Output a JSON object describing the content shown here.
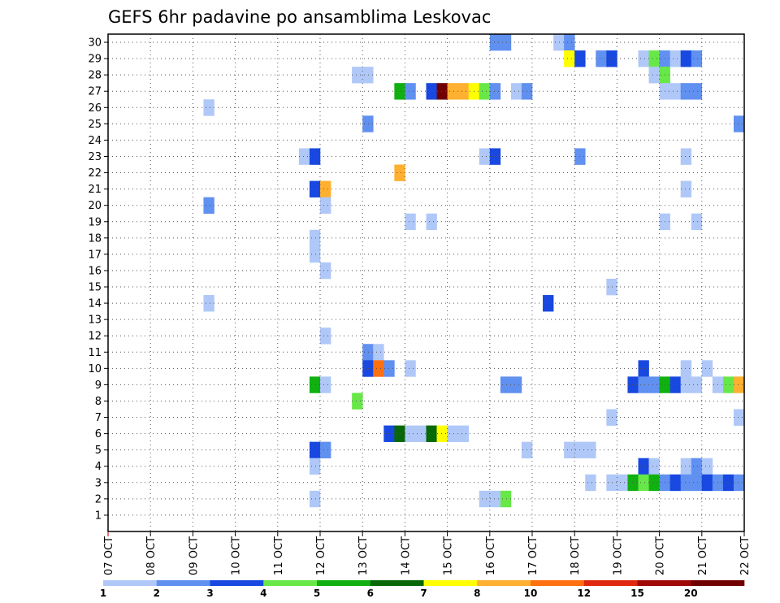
{
  "chart_data": {
    "type": "heatmap",
    "title": "GEFS 6hr padavine po ansamblima Leskovac",
    "x_tick_labels": [
      "07 OCT",
      "08 OCT",
      "09 OCT",
      "10 OCT",
      "11 OCT",
      "12 OCT",
      "13 OCT",
      "14 OCT",
      "15 OCT",
      "16 OCT",
      "17 OCT",
      "18 OCT",
      "19 OCT",
      "20 OCT",
      "21 OCT",
      "22 OCT"
    ],
    "y_range": [
      1,
      30
    ],
    "grid": true,
    "colors": [
      "#b0c8f8",
      "#6090f0",
      "#1848e0",
      "#68e848",
      "#10b010",
      "#086808",
      "#ffff00",
      "#ffb030",
      "#ff7010",
      "#e02810",
      "#a00808",
      "#700000"
    ],
    "legend_labels": [
      "1",
      "2",
      "3",
      "4",
      "5",
      "6",
      "7",
      "8",
      "10",
      "12",
      "15",
      "20"
    ],
    "cells": [
      {
        "day": "16 OCT",
        "slot": 0,
        "member": 30,
        "level": 1
      },
      {
        "day": "16 OCT",
        "slot": 1,
        "member": 30,
        "level": 1
      },
      {
        "day": "17 OCT",
        "slot": 2,
        "member": 30,
        "level": 0
      },
      {
        "day": "17 OCT",
        "slot": 3,
        "member": 30,
        "level": 1
      },
      {
        "day": "17 OCT",
        "slot": 3,
        "member": 29,
        "level": 6
      },
      {
        "day": "18 OCT",
        "slot": 0,
        "member": 29,
        "level": 2
      },
      {
        "day": "18 OCT",
        "slot": 2,
        "member": 29,
        "level": 1
      },
      {
        "day": "18 OCT",
        "slot": 3,
        "member": 29,
        "level": 2
      },
      {
        "day": "19 OCT",
        "slot": 2,
        "member": 29,
        "level": 0
      },
      {
        "day": "19 OCT",
        "slot": 3,
        "member": 29,
        "level": 3
      },
      {
        "day": "20 OCT",
        "slot": 0,
        "member": 29,
        "level": 1
      },
      {
        "day": "20 OCT",
        "slot": 1,
        "member": 29,
        "level": 0
      },
      {
        "day": "20 OCT",
        "slot": 2,
        "member": 29,
        "level": 2
      },
      {
        "day": "20 OCT",
        "slot": 3,
        "member": 29,
        "level": 1
      },
      {
        "day": "12 OCT",
        "slot": 3,
        "member": 28,
        "level": 0
      },
      {
        "day": "13 OCT",
        "slot": 0,
        "member": 28,
        "level": 0
      },
      {
        "day": "19 OCT",
        "slot": 3,
        "member": 28,
        "level": 0
      },
      {
        "day": "20 OCT",
        "slot": 0,
        "member": 28,
        "level": 3
      },
      {
        "day": "13 OCT",
        "slot": 3,
        "member": 27,
        "level": 4
      },
      {
        "day": "14 OCT",
        "slot": 0,
        "member": 27,
        "level": 1
      },
      {
        "day": "14 OCT",
        "slot": 2,
        "member": 27,
        "level": 2
      },
      {
        "day": "14 OCT",
        "slot": 3,
        "member": 27,
        "level": 11
      },
      {
        "day": "15 OCT",
        "slot": 0,
        "member": 27,
        "level": 7
      },
      {
        "day": "15 OCT",
        "slot": 1,
        "member": 27,
        "level": 7
      },
      {
        "day": "15 OCT",
        "slot": 2,
        "member": 27,
        "level": 6
      },
      {
        "day": "15 OCT",
        "slot": 3,
        "member": 27,
        "level": 3
      },
      {
        "day": "16 OCT",
        "slot": 0,
        "member": 27,
        "level": 1
      },
      {
        "day": "16 OCT",
        "slot": 2,
        "member": 27,
        "level": 0
      },
      {
        "day": "16 OCT",
        "slot": 3,
        "member": 27,
        "level": 1
      },
      {
        "day": "20 OCT",
        "slot": 0,
        "member": 27,
        "level": 0
      },
      {
        "day": "20 OCT",
        "slot": 1,
        "member": 27,
        "level": 0
      },
      {
        "day": "20 OCT",
        "slot": 2,
        "member": 27,
        "level": 1
      },
      {
        "day": "20 OCT",
        "slot": 3,
        "member": 27,
        "level": 1
      },
      {
        "day": "09 OCT",
        "slot": 1,
        "member": 26,
        "level": 0
      },
      {
        "day": "13 OCT",
        "slot": 0,
        "member": 25,
        "level": 1
      },
      {
        "day": "21 OCT",
        "slot": 3,
        "member": 25,
        "level": 1
      },
      {
        "day": "11 OCT",
        "slot": 2,
        "member": 23,
        "level": 0
      },
      {
        "day": "11 OCT",
        "slot": 3,
        "member": 23,
        "level": 2
      },
      {
        "day": "15 OCT",
        "slot": 3,
        "member": 23,
        "level": 0
      },
      {
        "day": "16 OCT",
        "slot": 0,
        "member": 23,
        "level": 2
      },
      {
        "day": "18 OCT",
        "slot": 0,
        "member": 23,
        "level": 1
      },
      {
        "day": "20 OCT",
        "slot": 2,
        "member": 23,
        "level": 0
      },
      {
        "day": "13 OCT",
        "slot": 3,
        "member": 22,
        "level": 7
      },
      {
        "day": "11 OCT",
        "slot": 3,
        "member": 21,
        "level": 2
      },
      {
        "day": "12 OCT",
        "slot": 0,
        "member": 21,
        "level": 7
      },
      {
        "day": "20 OCT",
        "slot": 2,
        "member": 21,
        "level": 0
      },
      {
        "day": "09 OCT",
        "slot": 1,
        "member": 20,
        "level": 1
      },
      {
        "day": "12 OCT",
        "slot": 0,
        "member": 20,
        "level": 0
      },
      {
        "day": "14 OCT",
        "slot": 0,
        "member": 19,
        "level": 0
      },
      {
        "day": "14 OCT",
        "slot": 2,
        "member": 19,
        "level": 0
      },
      {
        "day": "20 OCT",
        "slot": 0,
        "member": 19,
        "level": 0
      },
      {
        "day": "20 OCT",
        "slot": 3,
        "member": 19,
        "level": 0
      },
      {
        "day": "11 OCT",
        "slot": 3,
        "member": 18,
        "level": 0
      },
      {
        "day": "11 OCT",
        "slot": 3,
        "member": 17,
        "level": 0
      },
      {
        "day": "12 OCT",
        "slot": 0,
        "member": 16,
        "level": 0
      },
      {
        "day": "18 OCT",
        "slot": 3,
        "member": 15,
        "level": 0
      },
      {
        "day": "09 OCT",
        "slot": 1,
        "member": 14,
        "level": 0
      },
      {
        "day": "17 OCT",
        "slot": 1,
        "member": 14,
        "level": 2
      },
      {
        "day": "12 OCT",
        "slot": 0,
        "member": 12,
        "level": 0
      },
      {
        "day": "13 OCT",
        "slot": 0,
        "member": 11,
        "level": 1
      },
      {
        "day": "13 OCT",
        "slot": 1,
        "member": 11,
        "level": 0
      },
      {
        "day": "13 OCT",
        "slot": 0,
        "member": 10,
        "level": 2
      },
      {
        "day": "13 OCT",
        "slot": 1,
        "member": 10,
        "level": 8
      },
      {
        "day": "13 OCT",
        "slot": 2,
        "member": 10,
        "level": 1
      },
      {
        "day": "14 OCT",
        "slot": 0,
        "member": 10,
        "level": 0
      },
      {
        "day": "19 OCT",
        "slot": 2,
        "member": 10,
        "level": 2
      },
      {
        "day": "20 OCT",
        "slot": 2,
        "member": 10,
        "level": 0
      },
      {
        "day": "21 OCT",
        "slot": 0,
        "member": 10,
        "level": 0
      },
      {
        "day": "11 OCT",
        "slot": 3,
        "member": 9,
        "level": 4
      },
      {
        "day": "12 OCT",
        "slot": 0,
        "member": 9,
        "level": 0
      },
      {
        "day": "16 OCT",
        "slot": 1,
        "member": 9,
        "level": 1
      },
      {
        "day": "16 OCT",
        "slot": 2,
        "member": 9,
        "level": 1
      },
      {
        "day": "19 OCT",
        "slot": 1,
        "member": 9,
        "level": 2
      },
      {
        "day": "19 OCT",
        "slot": 2,
        "member": 9,
        "level": 1
      },
      {
        "day": "19 OCT",
        "slot": 3,
        "member": 9,
        "level": 1
      },
      {
        "day": "20 OCT",
        "slot": 0,
        "member": 9,
        "level": 4
      },
      {
        "day": "20 OCT",
        "slot": 1,
        "member": 9,
        "level": 2
      },
      {
        "day": "20 OCT",
        "slot": 2,
        "member": 9,
        "level": 0
      },
      {
        "day": "20 OCT",
        "slot": 3,
        "member": 9,
        "level": 0
      },
      {
        "day": "21 OCT",
        "slot": 1,
        "member": 9,
        "level": 0
      },
      {
        "day": "21 OCT",
        "slot": 2,
        "member": 9,
        "level": 3
      },
      {
        "day": "21 OCT",
        "slot": 3,
        "member": 9,
        "level": 7
      },
      {
        "day": "12 OCT",
        "slot": 3,
        "member": 8,
        "level": 3
      },
      {
        "day": "18 OCT",
        "slot": 3,
        "member": 7,
        "level": 0
      },
      {
        "day": "21 OCT",
        "slot": 3,
        "member": 7,
        "level": 0
      },
      {
        "day": "13 OCT",
        "slot": 2,
        "member": 6,
        "level": 2
      },
      {
        "day": "13 OCT",
        "slot": 3,
        "member": 6,
        "level": 5
      },
      {
        "day": "14 OCT",
        "slot": 0,
        "member": 6,
        "level": 0
      },
      {
        "day": "14 OCT",
        "slot": 1,
        "member": 6,
        "level": 0
      },
      {
        "day": "14 OCT",
        "slot": 2,
        "member": 6,
        "level": 5
      },
      {
        "day": "14 OCT",
        "slot": 3,
        "member": 6,
        "level": 6
      },
      {
        "day": "15 OCT",
        "slot": 0,
        "member": 6,
        "level": 0
      },
      {
        "day": "15 OCT",
        "slot": 1,
        "member": 6,
        "level": 0
      },
      {
        "day": "11 OCT",
        "slot": 3,
        "member": 5,
        "level": 2
      },
      {
        "day": "12 OCT",
        "slot": 0,
        "member": 5,
        "level": 1
      },
      {
        "day": "16 OCT",
        "slot": 3,
        "member": 5,
        "level": 0
      },
      {
        "day": "17 OCT",
        "slot": 3,
        "member": 5,
        "level": 0
      },
      {
        "day": "18 OCT",
        "slot": 0,
        "member": 5,
        "level": 0
      },
      {
        "day": "18 OCT",
        "slot": 1,
        "member": 5,
        "level": 0
      },
      {
        "day": "11 OCT",
        "slot": 3,
        "member": 4,
        "level": 0
      },
      {
        "day": "19 OCT",
        "slot": 2,
        "member": 4,
        "level": 2
      },
      {
        "day": "19 OCT",
        "slot": 3,
        "member": 4,
        "level": 0
      },
      {
        "day": "20 OCT",
        "slot": 2,
        "member": 4,
        "level": 0
      },
      {
        "day": "20 OCT",
        "slot": 3,
        "member": 4,
        "level": 1
      },
      {
        "day": "21 OCT",
        "slot": 0,
        "member": 4,
        "level": 0
      },
      {
        "day": "18 OCT",
        "slot": 1,
        "member": 3,
        "level": 0
      },
      {
        "day": "18 OCT",
        "slot": 3,
        "member": 3,
        "level": 0
      },
      {
        "day": "19 OCT",
        "slot": 0,
        "member": 3,
        "level": 0
      },
      {
        "day": "19 OCT",
        "slot": 1,
        "member": 3,
        "level": 4
      },
      {
        "day": "19 OCT",
        "slot": 2,
        "member": 3,
        "level": 3
      },
      {
        "day": "19 OCT",
        "slot": 3,
        "member": 3,
        "level": 4
      },
      {
        "day": "20 OCT",
        "slot": 0,
        "member": 3,
        "level": 1
      },
      {
        "day": "20 OCT",
        "slot": 1,
        "member": 3,
        "level": 2
      },
      {
        "day": "20 OCT",
        "slot": 2,
        "member": 3,
        "level": 1
      },
      {
        "day": "20 OCT",
        "slot": 3,
        "member": 3,
        "level": 1
      },
      {
        "day": "21 OCT",
        "slot": 0,
        "member": 3,
        "level": 2
      },
      {
        "day": "21 OCT",
        "slot": 1,
        "member": 3,
        "level": 1
      },
      {
        "day": "21 OCT",
        "slot": 2,
        "member": 3,
        "level": 2
      },
      {
        "day": "21 OCT",
        "slot": 3,
        "member": 3,
        "level": 1
      },
      {
        "day": "11 OCT",
        "slot": 3,
        "member": 2,
        "level": 0
      },
      {
        "day": "15 OCT",
        "slot": 3,
        "member": 2,
        "level": 0
      },
      {
        "day": "16 OCT",
        "slot": 0,
        "member": 2,
        "level": 0
      },
      {
        "day": "16 OCT",
        "slot": 1,
        "member": 2,
        "level": 3
      }
    ]
  }
}
